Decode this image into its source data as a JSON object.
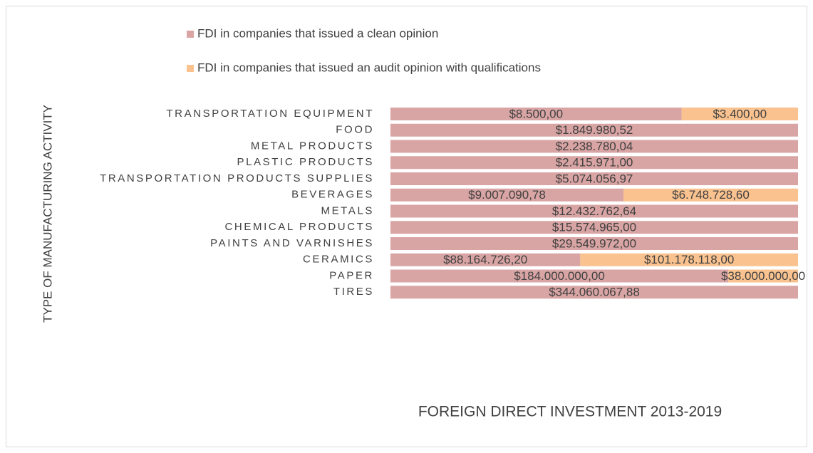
{
  "chart_data": {
    "type": "bar",
    "orientation": "horizontal",
    "stacking": "percent",
    "x_axis_label": "FOREIGN DIRECT INVESTMENT 2013-2019",
    "y_axis_label": "TYPE OF MANUFACTURING ACTIVITY",
    "categories": [
      "TRANSPORTATION EQUIPMENT",
      "FOOD",
      "METAL PRODUCTS",
      "PLASTIC PRODUCTS",
      "TRANSPORTATION PRODUCTS SUPPLIES",
      "BEVERAGES",
      "METALS",
      "CHEMICAL PRODUCTS",
      "PAINTS AND VARNISHES",
      "CERAMICS",
      "PAPER",
      "TIRES"
    ],
    "series": [
      {
        "name": "FDI in companies that issued a clean opinion",
        "color": "#d9a5a4",
        "values": [
          8500,
          1849980.52,
          2238780.04,
          2415971,
          5074056.97,
          9007090.78,
          12432762.64,
          15574965,
          29549972,
          88164726.2,
          184000000,
          344060067.88
        ],
        "value_labels": [
          "$8.500,00",
          "$1.849.980,52",
          "$2.238.780,04",
          "$2.415.971,00",
          "$5.074.056,97",
          "$9.007.090,78",
          "$12.432.762,64",
          "$15.574.965,00",
          "$29.549.972,00",
          "$88.164.726,20",
          "$184.000.000,00",
          "$344.060.067,88"
        ]
      },
      {
        "name": "FDI in companies that issued an audit opinion with qualifications",
        "color": "#f9c28f",
        "values": [
          3400,
          null,
          null,
          null,
          null,
          6748728.6,
          null,
          null,
          null,
          101178118,
          38000000,
          null
        ],
        "value_labels": [
          "$3.400,00",
          null,
          null,
          null,
          null,
          "$6.748.728,60",
          null,
          null,
          null,
          "$101.178.118,00",
          "$38.000.000,00",
          null
        ]
      }
    ],
    "legend": "top"
  }
}
